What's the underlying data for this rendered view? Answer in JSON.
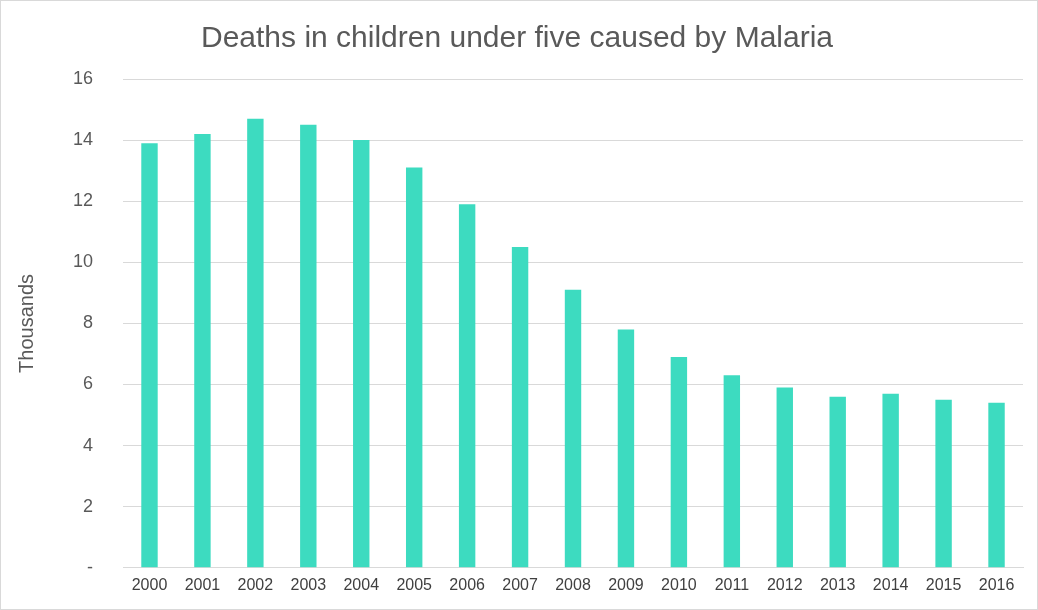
{
  "chart_data": {
    "type": "bar",
    "title": "Deaths in children under five caused by Malaria",
    "ylabel": "Thousands",
    "categories": [
      "2000",
      "2001",
      "2002",
      "2003",
      "2004",
      "2005",
      "2006",
      "2007",
      "2008",
      "2009",
      "2010",
      "2011",
      "2012",
      "2013",
      "2014",
      "2015",
      "2016"
    ],
    "values": [
      13.9,
      14.2,
      14.7,
      14.5,
      14.0,
      13.1,
      11.9,
      10.5,
      9.1,
      7.8,
      6.9,
      6.3,
      5.9,
      5.6,
      5.7,
      5.5,
      5.4
    ],
    "color": "#3ddbc0",
    "ylim": [
      0,
      16
    ],
    "yticks": [
      {
        "value": 0,
        "label": "-"
      },
      2,
      4,
      6,
      8,
      10,
      12,
      14,
      16
    ],
    "grid": "y",
    "legend": false
  }
}
